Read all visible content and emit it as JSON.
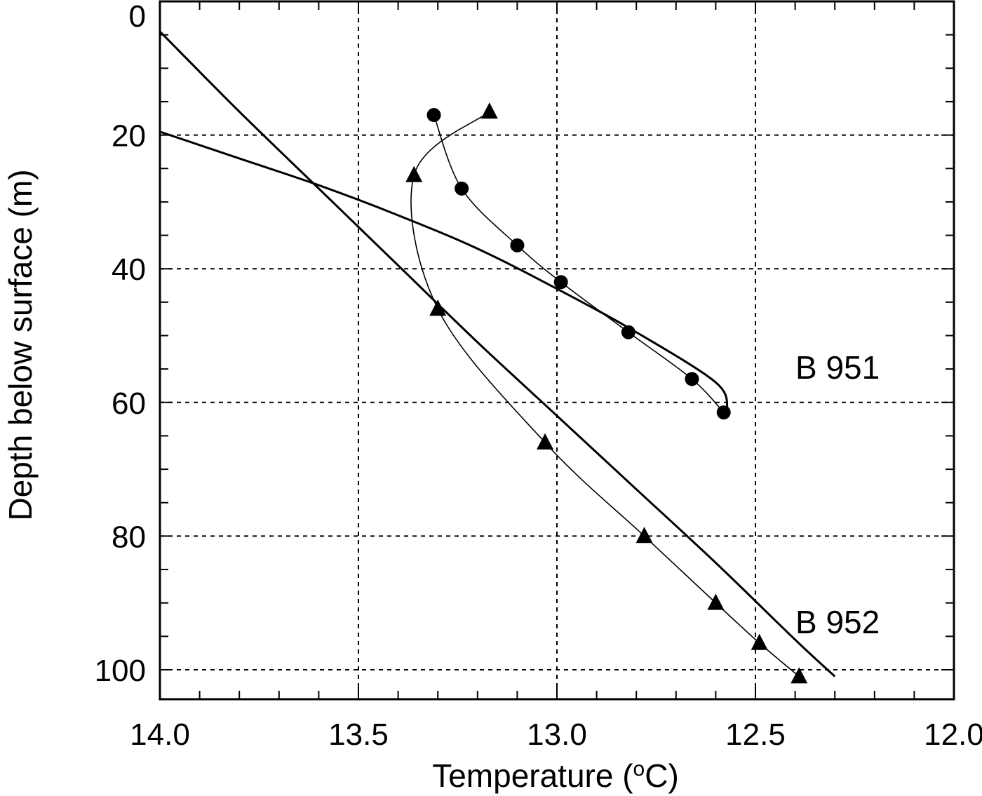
{
  "chart_data": {
    "type": "line",
    "xlabel": "Temperature (",
    "xlabel_sup": "o",
    "xlabel_unit": "C)",
    "ylabel": "Depth below surface (m)",
    "xlim": [
      14.0,
      12.0
    ],
    "ylim": [
      0,
      105
    ],
    "x_reversed": true,
    "y_inverted": true,
    "x_ticks": [
      14.0,
      13.5,
      13.0,
      12.5,
      12.0
    ],
    "x_tick_labels": [
      "14.0",
      "13.5",
      "13.0",
      "12.5",
      "12.0"
    ],
    "y_ticks": [
      0,
      20,
      40,
      60,
      80,
      100
    ],
    "y_tick_labels": [
      "0",
      "20",
      "40",
      "60",
      "80",
      "100"
    ],
    "grid": true,
    "series": [
      {
        "name": "B 951",
        "marker": "circle",
        "points": [
          {
            "x": 13.31,
            "y": 17
          },
          {
            "x": 13.24,
            "y": 28
          },
          {
            "x": 13.1,
            "y": 36.5
          },
          {
            "x": 12.99,
            "y": 42
          },
          {
            "x": 12.82,
            "y": 49.5
          },
          {
            "x": 12.66,
            "y": 56.5
          },
          {
            "x": 12.58,
            "y": 61.5
          }
        ],
        "fit_line": [
          {
            "x": 14.0,
            "y": 19.5
          },
          {
            "x": 13.8,
            "y": 23.5
          },
          {
            "x": 13.6,
            "y": 27.5
          },
          {
            "x": 13.4,
            "y": 32
          },
          {
            "x": 13.2,
            "y": 37
          },
          {
            "x": 13.0,
            "y": 43
          },
          {
            "x": 12.8,
            "y": 49.5
          },
          {
            "x": 12.6,
            "y": 57
          },
          {
            "x": 12.57,
            "y": 61
          }
        ]
      },
      {
        "name": "B 952",
        "marker": "triangle",
        "points": [
          {
            "x": 13.17,
            "y": 16.5
          },
          {
            "x": 13.36,
            "y": 26
          },
          {
            "x": 13.3,
            "y": 46
          },
          {
            "x": 13.03,
            "y": 66
          },
          {
            "x": 12.78,
            "y": 80
          },
          {
            "x": 12.6,
            "y": 90
          },
          {
            "x": 12.49,
            "y": 96
          },
          {
            "x": 12.39,
            "y": 101
          }
        ],
        "fit_line": [
          {
            "x": 14.0,
            "y": 4.5
          },
          {
            "x": 13.8,
            "y": 16.5
          },
          {
            "x": 13.6,
            "y": 28
          },
          {
            "x": 13.4,
            "y": 39.5
          },
          {
            "x": 13.2,
            "y": 51
          },
          {
            "x": 13.0,
            "y": 62
          },
          {
            "x": 12.8,
            "y": 73
          },
          {
            "x": 12.6,
            "y": 84
          },
          {
            "x": 12.4,
            "y": 95.5
          },
          {
            "x": 12.3,
            "y": 101
          }
        ]
      }
    ],
    "annotations": [
      "B 951",
      "B 952"
    ]
  }
}
